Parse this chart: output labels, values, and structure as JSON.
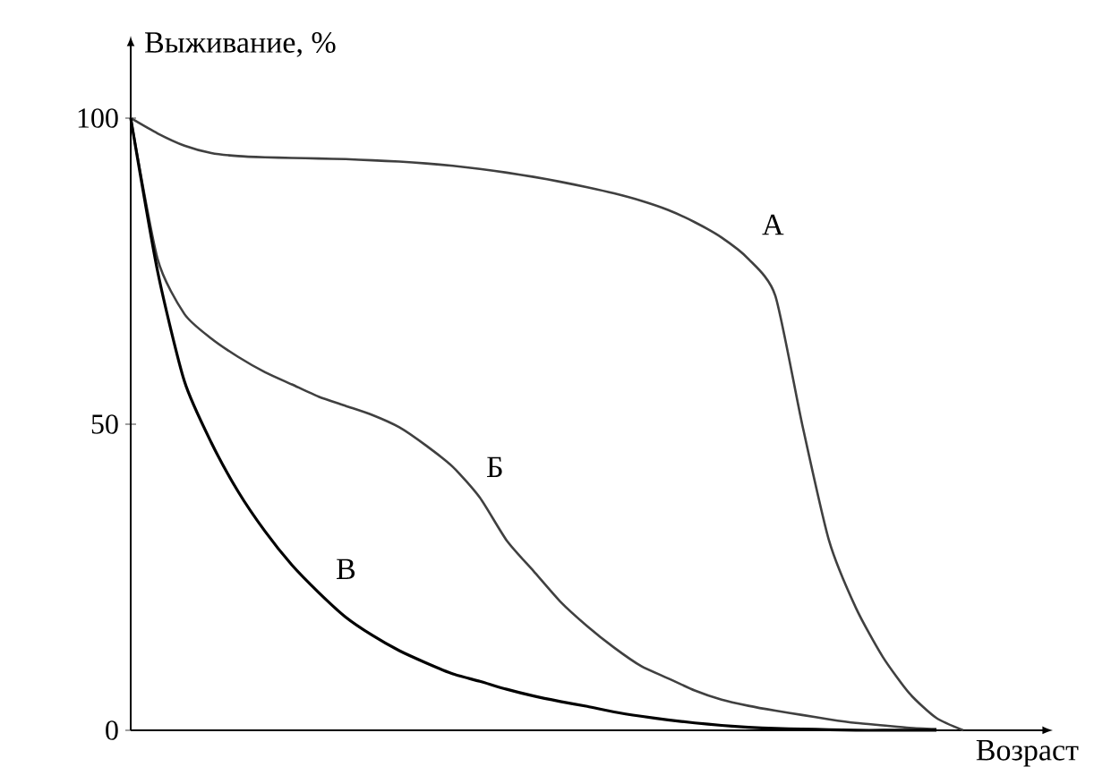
{
  "chart_data": {
    "type": "line",
    "ylabel": "Выживание, %",
    "xlabel": "Возраст",
    "categories": [
      null,
      null,
      null,
      null,
      null,
      null,
      null,
      null,
      null,
      null,
      null,
      null,
      null,
      null,
      null,
      null,
      null,
      null,
      null,
      null,
      null,
      null,
      null,
      null,
      null,
      null,
      null,
      null,
      null,
      null,
      null,
      null
    ],
    "series": [
      {
        "name": "А",
        "color": "#404040",
        "values": [
          100,
          97.5,
          95.5,
          94.3,
          93.8,
          93.6,
          93.5,
          93.4,
          93.3,
          93.1,
          92.9,
          92.6,
          92.2,
          91.7,
          91.1,
          90.4,
          89.6,
          88.7,
          87.7,
          86.5,
          85,
          83,
          80.5,
          77,
          71,
          50,
          31,
          20,
          12,
          6,
          2,
          0
        ]
      },
      {
        "name": "Б",
        "color": "#404040",
        "values": [
          100,
          77,
          68,
          64,
          61,
          58.5,
          56.5,
          54.5,
          53,
          51.5,
          49.5,
          46.5,
          43,
          38,
          31,
          26,
          21,
          17,
          13.5,
          10.5,
          8.5,
          6.5,
          5,
          4,
          3.2,
          2.5,
          1.8,
          1.2,
          0.8,
          0.4,
          0.2,
          null
        ]
      },
      {
        "name": "В",
        "color": "#000000",
        "values": [
          100,
          75,
          57,
          47,
          39,
          32.5,
          27,
          22.5,
          18.5,
          15.5,
          13,
          11,
          9.2,
          8,
          6.7,
          5.6,
          4.7,
          3.9,
          3,
          2.3,
          1.7,
          1.2,
          0.8,
          0.5,
          0.3,
          0.2,
          0.1,
          0,
          0,
          0,
          0,
          null
        ]
      }
    ],
    "ylim": [
      0,
      112
    ],
    "yticks": [
      0,
      50,
      100
    ]
  }
}
